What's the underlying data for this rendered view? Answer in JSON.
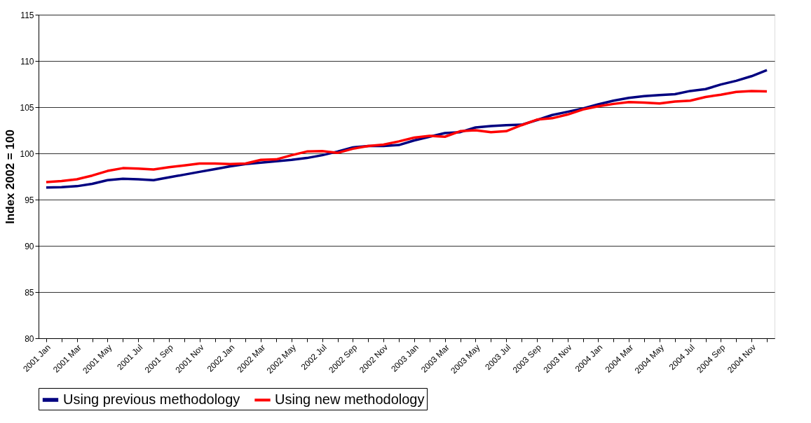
{
  "chart_data": {
    "type": "line",
    "ylabel": "Index 2002 = 100",
    "categories": [
      "2001 Jan",
      null,
      "2001 Mar",
      null,
      "2001 May",
      null,
      "2001 Jul",
      null,
      "2001 Sep",
      null,
      "2001 Nov",
      null,
      "2002 Jan",
      null,
      "2002 Mar",
      null,
      "2002 May",
      null,
      "2002 Jul",
      null,
      "2002 Sep",
      null,
      "2002 Nov",
      null,
      "2003 Jan",
      null,
      "2003 Mar",
      null,
      "2003 May",
      null,
      "2003 Jul",
      null,
      "2003 Sep",
      null,
      "2003 Nov",
      null,
      "2004 Jan",
      null,
      "2004 Mar",
      null,
      "2004 May",
      null,
      "2004 Jul",
      null,
      "2004 Sep",
      null,
      "2004 Nov",
      null
    ],
    "series": [
      {
        "name": "Using previous methodology",
        "color": "#000080",
        "values": [
          96.3,
          96.35,
          96.45,
          96.7,
          97.1,
          97.25,
          97.2,
          97.1,
          97.4,
          97.7,
          98.0,
          98.3,
          98.6,
          98.85,
          99.0,
          99.15,
          99.3,
          99.5,
          99.8,
          100.2,
          100.65,
          100.8,
          100.8,
          100.9,
          101.4,
          101.8,
          102.2,
          102.3,
          102.8,
          102.95,
          103.05,
          103.1,
          103.6,
          104.15,
          104.5,
          104.85,
          105.3,
          105.7,
          106.0,
          106.2,
          106.3,
          106.4,
          106.75,
          106.95,
          107.45,
          107.85,
          108.35,
          109.0
        ]
      },
      {
        "name": "Using new methodology",
        "color": "#ff0000",
        "values": [
          96.9,
          97.0,
          97.2,
          97.6,
          98.1,
          98.4,
          98.35,
          98.25,
          98.5,
          98.7,
          98.9,
          98.9,
          98.85,
          98.9,
          99.3,
          99.35,
          99.8,
          100.2,
          100.25,
          100.05,
          100.5,
          100.8,
          100.95,
          101.3,
          101.7,
          101.9,
          101.8,
          102.4,
          102.5,
          102.3,
          102.4,
          103.05,
          103.65,
          103.8,
          104.2,
          104.75,
          105.1,
          105.35,
          105.55,
          105.5,
          105.4,
          105.6,
          105.7,
          106.1,
          106.35,
          106.65,
          106.75,
          106.7
        ]
      }
    ],
    "ylim": [
      80,
      115
    ],
    "yticks": [
      80,
      85,
      90,
      95,
      100,
      105,
      110,
      115
    ],
    "grid": "y",
    "legend": "bottom",
    "marker": "none",
    "line_style": "solid"
  }
}
